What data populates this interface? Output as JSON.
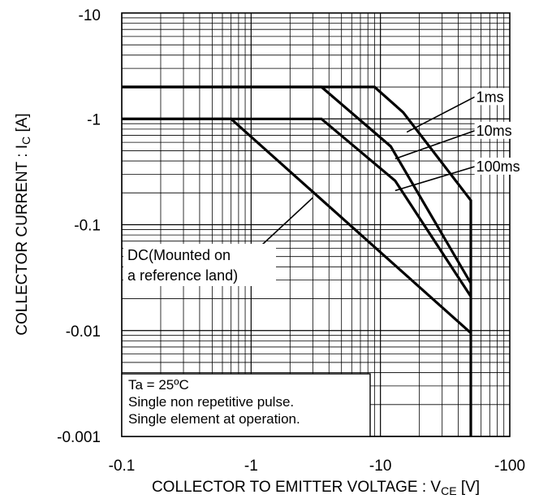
{
  "chart_data": {
    "type": "line",
    "title": "",
    "xlabel": "COLLECTOR TO EMITTER VOLTAGE : V",
    "xlabel_sub": "CE",
    "xlabel_unit": "[V]",
    "ylabel": "COLLECTOR CURRENT : I",
    "ylabel_sub": "C",
    "ylabel_unit": "[A]",
    "x_scale": "log",
    "y_scale": "log",
    "xlim": [
      -0.1,
      -100
    ],
    "ylim": [
      -0.001,
      -10
    ],
    "x_ticks": [
      -0.1,
      -1,
      -10,
      -100
    ],
    "x_tick_labels": [
      "-0.1",
      "-1",
      "-10",
      "-100"
    ],
    "y_ticks": [
      -10,
      -1,
      -0.1,
      -0.01,
      -0.001
    ],
    "y_tick_labels": [
      "-10",
      "-1",
      "-0.1",
      "-0.01",
      "-0.001"
    ],
    "grid": true,
    "series": [
      {
        "name": "1ms",
        "x": [
          -0.1,
          -9,
          -15,
          -50,
          -50
        ],
        "y": [
          -2,
          -2,
          -1.15,
          -0.17,
          -0.001
        ]
      },
      {
        "name": "10ms",
        "x": [
          -0.1,
          -3.5,
          -12,
          -50
        ],
        "y": [
          -2,
          -2,
          -0.55,
          -0.028
        ]
      },
      {
        "name": "100ms",
        "x": [
          -0.1,
          -3.5,
          -13,
          -50
        ],
        "y": [
          -1,
          -1,
          -0.26,
          -0.021
        ]
      },
      {
        "name": "DC(Mounted on a reference land)",
        "x": [
          -0.1,
          -0.7,
          -50
        ],
        "y": [
          -1,
          -1,
          -0.0095
        ]
      }
    ],
    "annotations": [
      {
        "text": "1ms",
        "x": -55,
        "y": -1.5
      },
      {
        "text": "10ms",
        "x": -55,
        "y": -0.72
      },
      {
        "text": "100ms",
        "x": -55,
        "y": -0.33
      }
    ],
    "dc_label": [
      "DC(Mounted on",
      "a reference land)"
    ],
    "note_lines": [
      "Ta = 25ºC",
      "Single non repetitive pulse.",
      "Single element at operation."
    ]
  }
}
